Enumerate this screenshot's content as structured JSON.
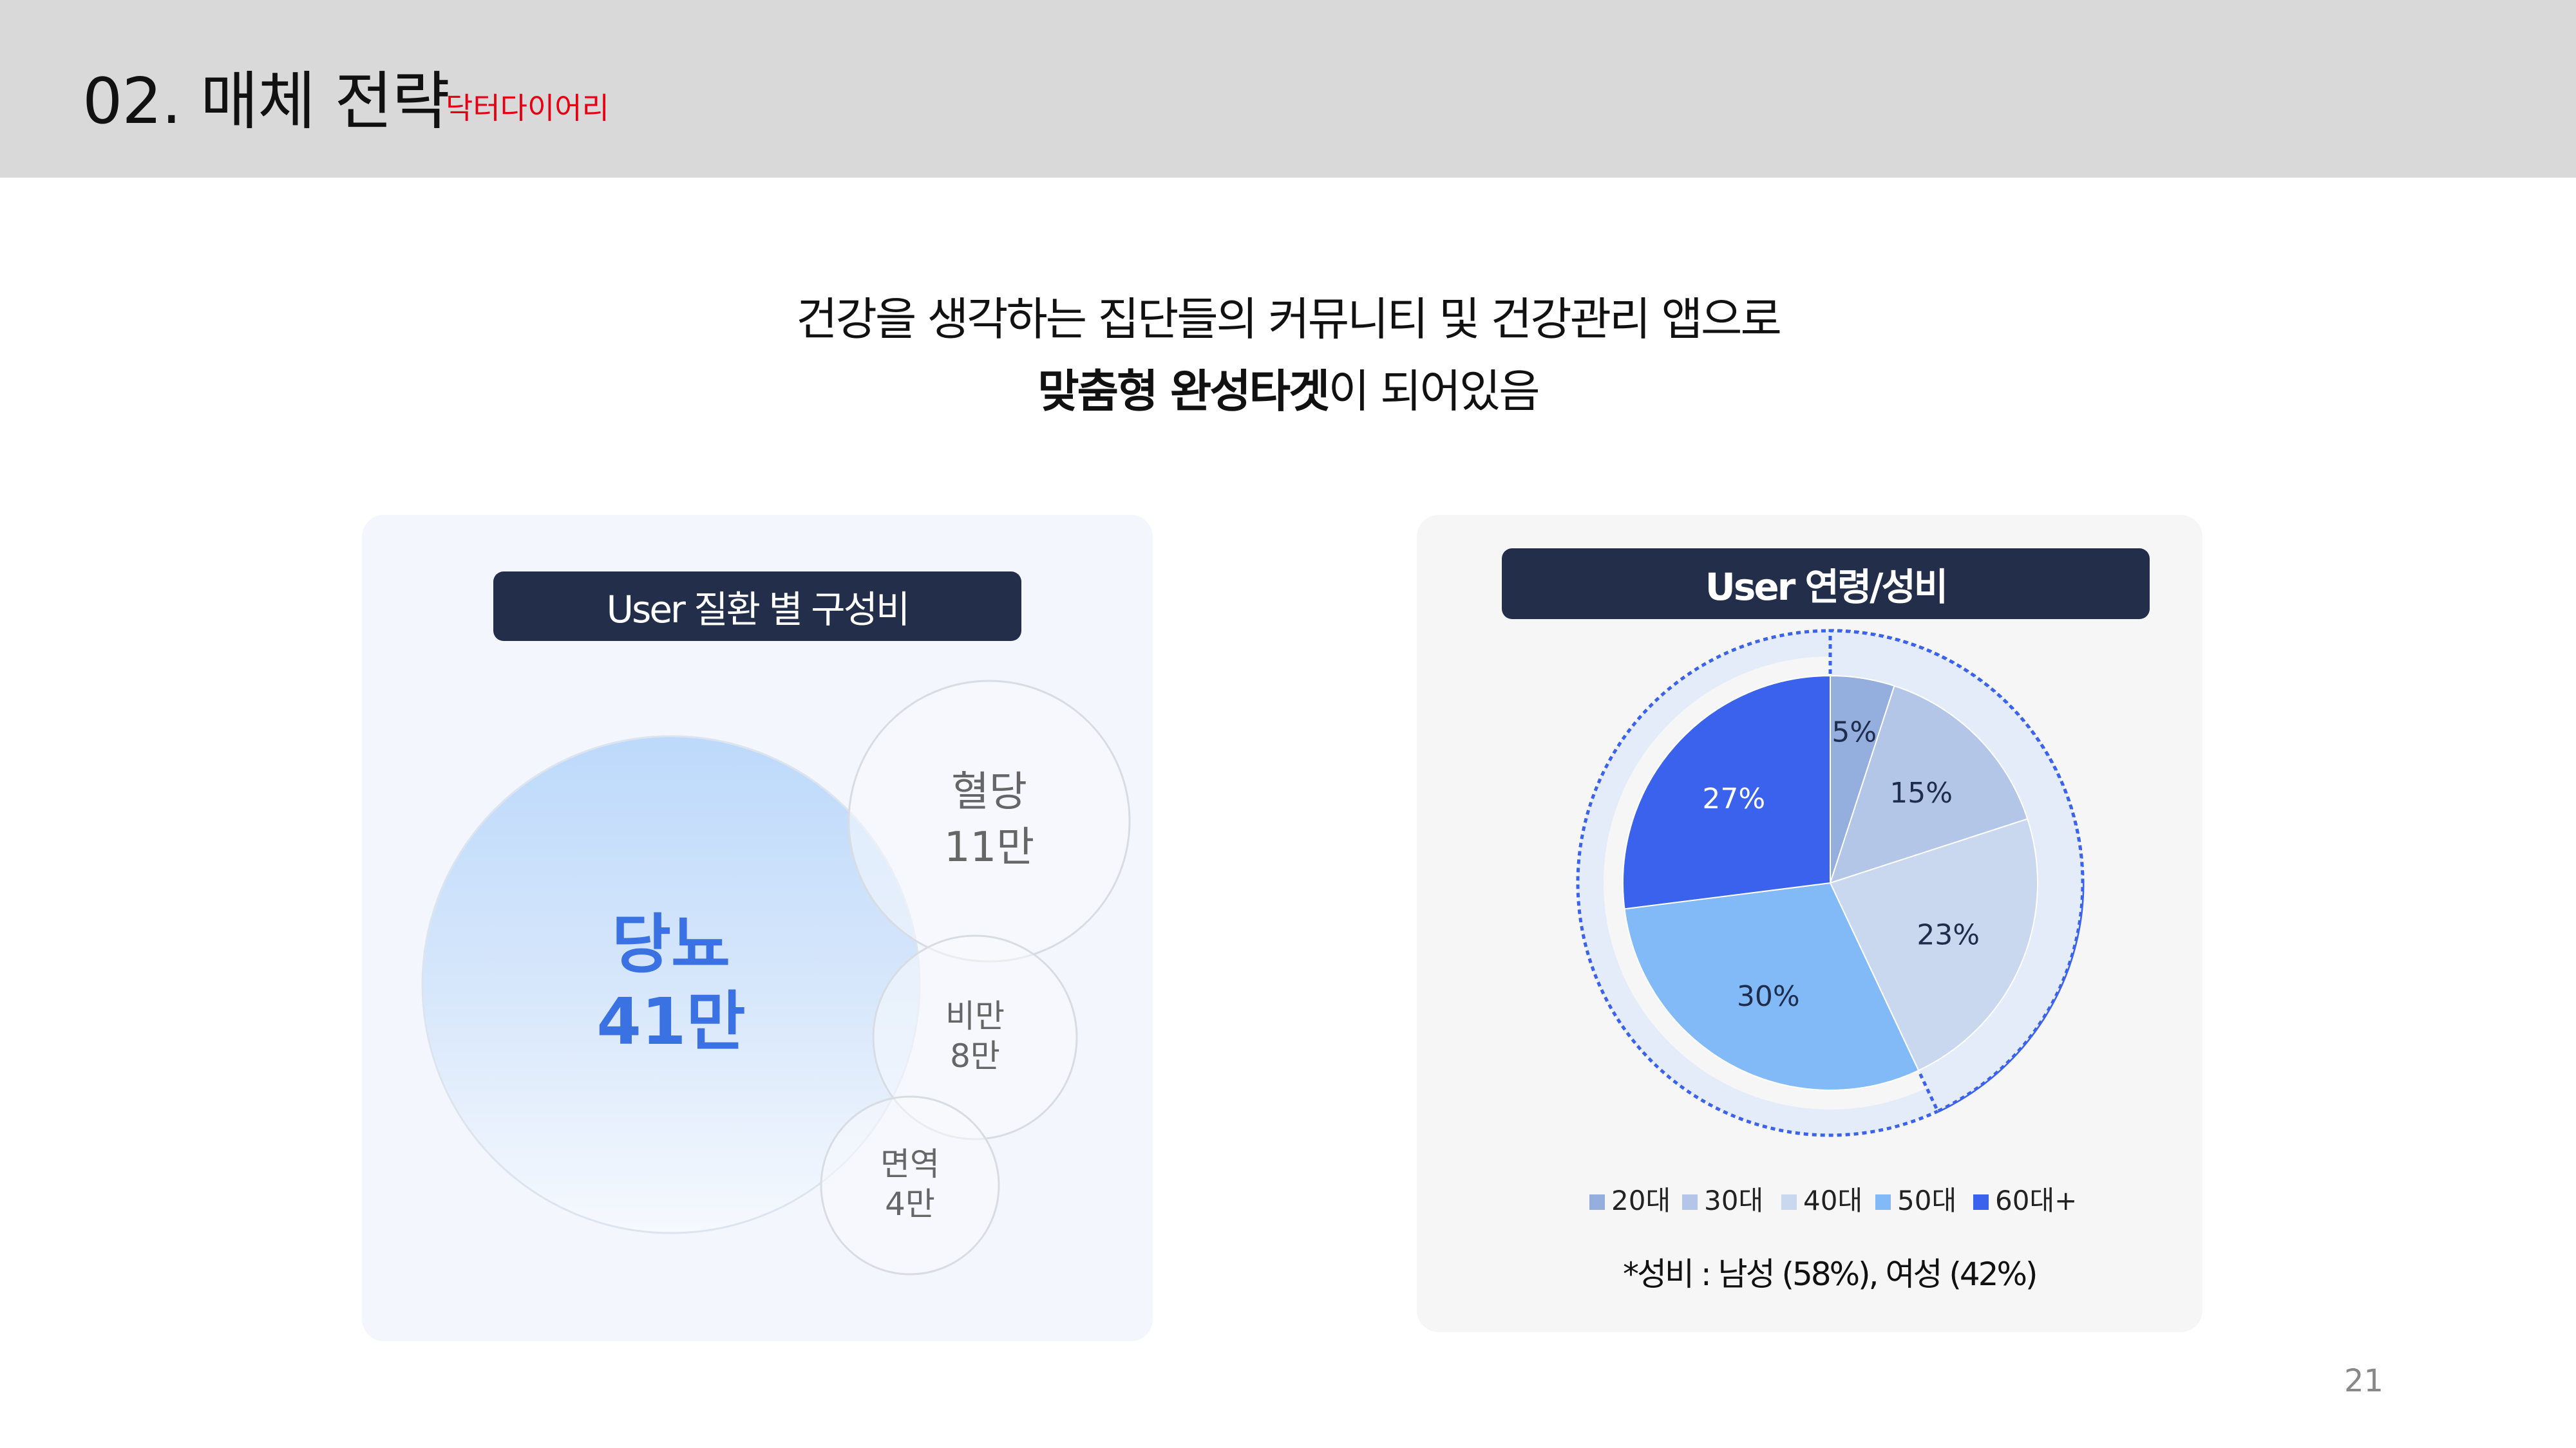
{
  "header": {
    "title": "02. 매체 전략",
    "subtitle": "닥터다이어리"
  },
  "headline": {
    "line1": "건강을 생각하는 집단들의 커뮤니티 및 건강관리 앱으로",
    "line2_bold": "맞춤형 완성타겟",
    "line2_rest": "이 되어있음"
  },
  "left_panel": {
    "title": "User 질환 별 구성비",
    "bubbles": [
      {
        "label": "당뇨",
        "value": "41만",
        "count": 41
      },
      {
        "label": "혈당",
        "value": "11만",
        "count": 11
      },
      {
        "label": "비만",
        "value": "8만",
        "count": 8
      },
      {
        "label": "면역",
        "value": "4만",
        "count": 4
      }
    ]
  },
  "right_panel": {
    "title": "User 연령/성비",
    "note": "*성비 : 남성 (58%), 여성 (42%)"
  },
  "chart_data": {
    "type": "pie",
    "categories": [
      "20대",
      "30대",
      "40대",
      "50대",
      "60대+"
    ],
    "values": [
      5,
      15,
      23,
      30,
      27
    ],
    "value_labels": [
      "5%",
      "15%",
      "23%",
      "30%",
      "27%"
    ],
    "highlighted": [
      "20대",
      "30대",
      "40대"
    ],
    "colors": [
      "#94aedd",
      "#b4c6e7",
      "#c9d8ef",
      "#82b9f7",
      "#3b62ec"
    ],
    "legend_placement": "bottom"
  },
  "footer": {
    "page_number": "21"
  }
}
